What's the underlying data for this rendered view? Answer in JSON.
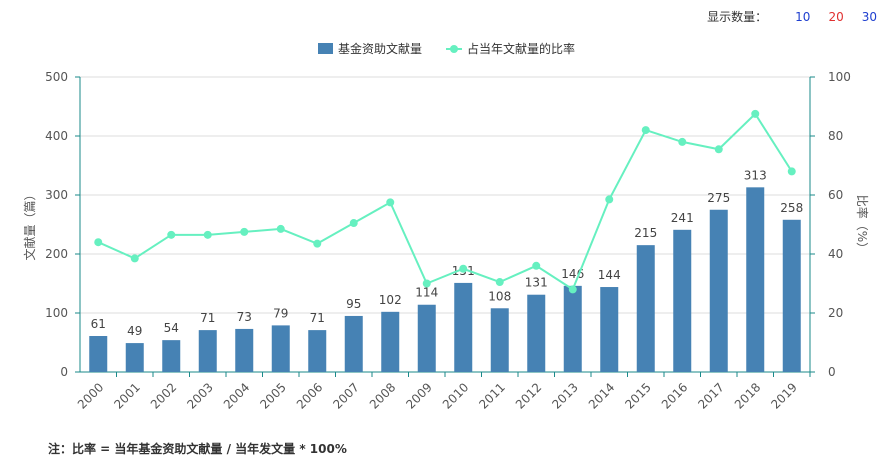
{
  "controls": {
    "label": "显示数量：",
    "options": [
      {
        "text": "10",
        "color": "#1f3fcf"
      },
      {
        "text": "20",
        "color": "#e03030"
      },
      {
        "text": "30",
        "color": "#1f3fcf"
      }
    ]
  },
  "note": "注：比率 = 当年基金资助文献量 / 当年发文量 * 100%",
  "colors": {
    "bar": "#4682b4",
    "line": "#66f0c0",
    "axis": "#1a8a8a",
    "grid": "#dddddd"
  },
  "chart_data": {
    "type": "bar",
    "categories": [
      "2000",
      "2001",
      "2002",
      "2003",
      "2004",
      "2005",
      "2006",
      "2007",
      "2008",
      "2009",
      "2010",
      "2011",
      "2012",
      "2013",
      "2014",
      "2015",
      "2016",
      "2017",
      "2018",
      "2019"
    ],
    "series": [
      {
        "name": "基金资助文献量",
        "type": "bar",
        "axis": "left",
        "values": [
          61,
          49,
          54,
          71,
          73,
          79,
          71,
          95,
          102,
          114,
          151,
          108,
          131,
          146,
          144,
          215,
          241,
          275,
          313,
          258
        ]
      },
      {
        "name": "占当年文献量的比率",
        "type": "line",
        "axis": "right",
        "values": [
          44,
          38.5,
          46.5,
          46.5,
          47.5,
          48.5,
          43.5,
          50.5,
          57.5,
          30,
          35,
          30.5,
          36,
          28,
          58.5,
          82,
          78,
          75.5,
          87.5,
          68
        ]
      }
    ],
    "ylabel": "文献量（篇）",
    "y2label": "比率（%）",
    "ylim": [
      0,
      500
    ],
    "y2lim": [
      0,
      100
    ],
    "yticks": [
      0,
      100,
      200,
      300,
      400,
      500
    ],
    "y2ticks": [
      0,
      20,
      40,
      60,
      80,
      100
    ],
    "legend": "top-center",
    "grid": true
  }
}
